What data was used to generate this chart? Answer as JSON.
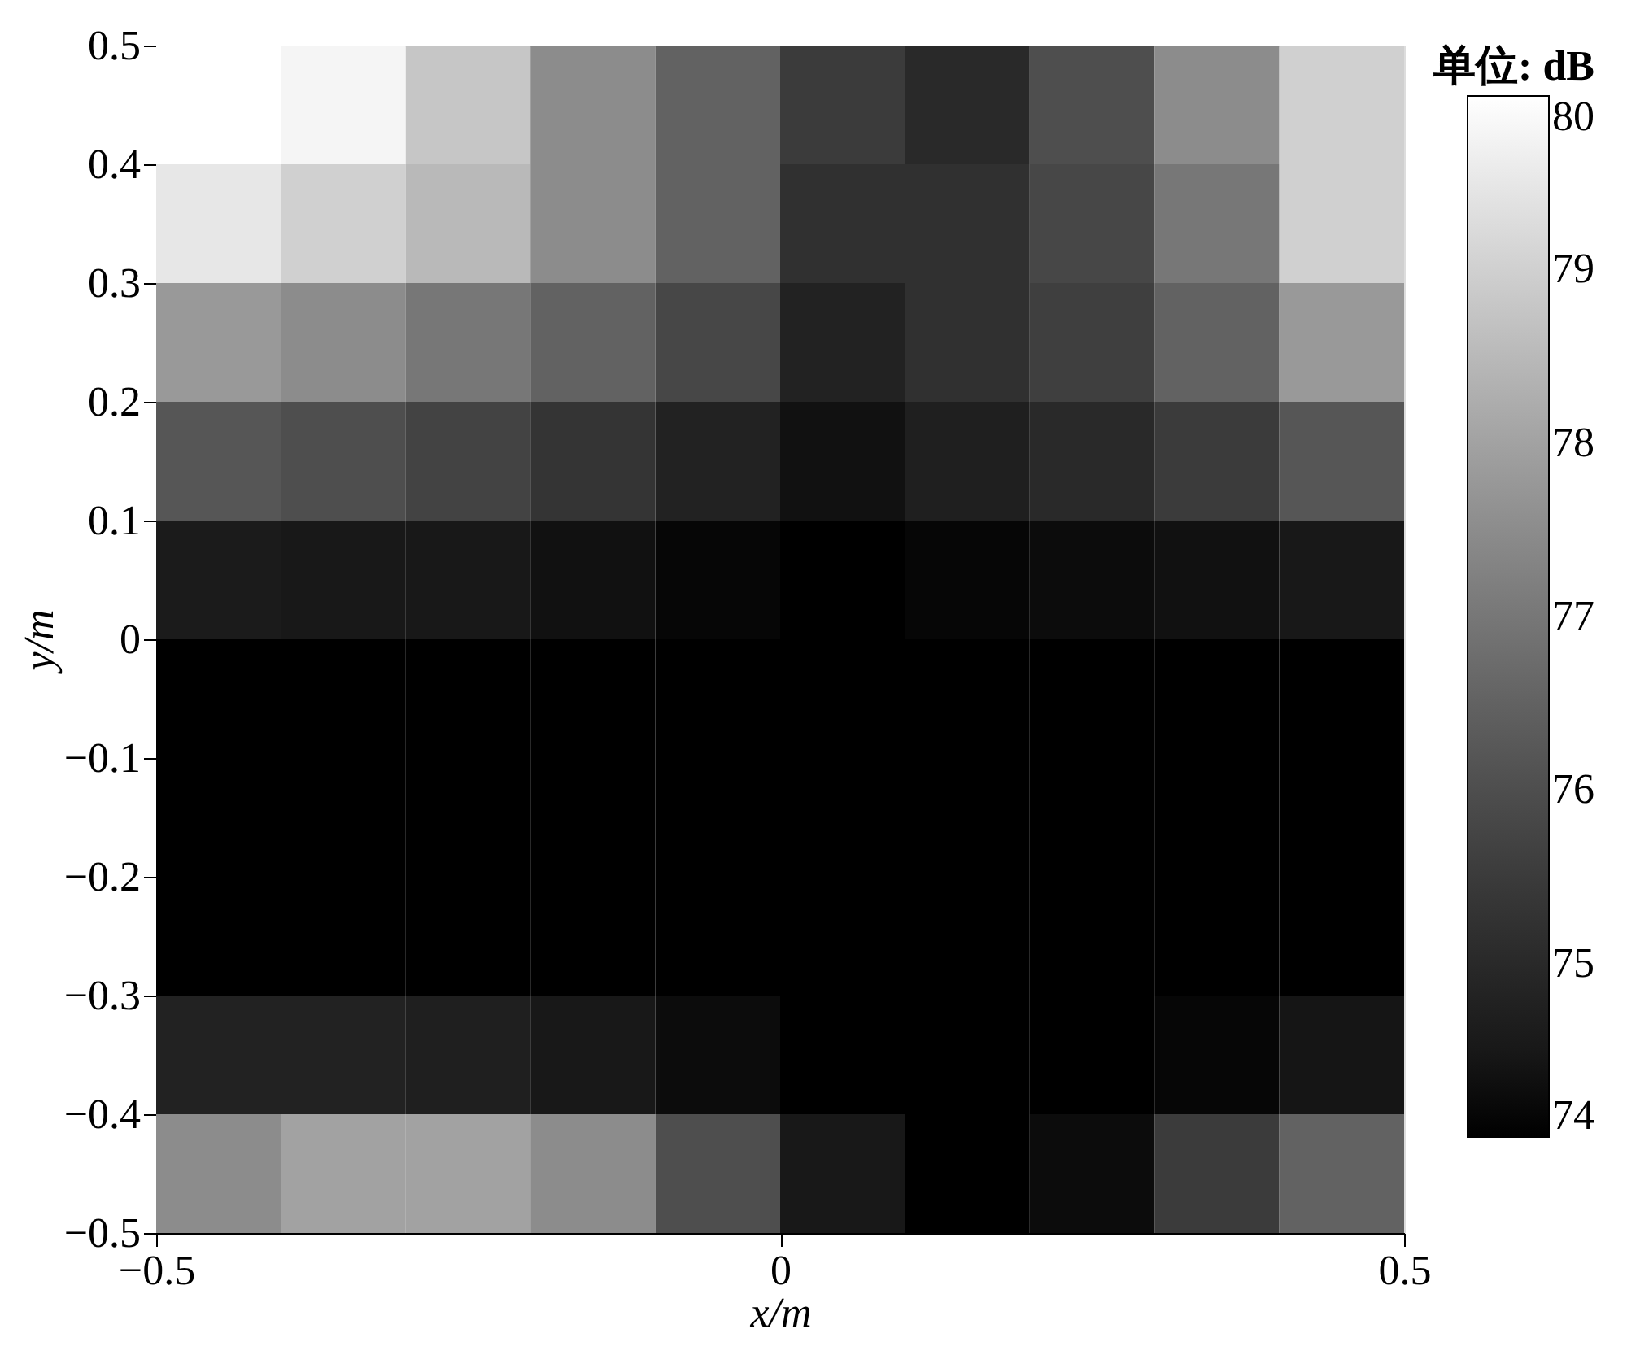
{
  "chart_data": {
    "type": "heatmap",
    "xlabel": "x/m",
    "ylabel": "y/m",
    "clabel": "单位: dB",
    "x": [
      -0.45,
      -0.35,
      -0.25,
      -0.15,
      -0.05,
      0.05,
      0.15,
      0.25,
      0.35,
      0.45
    ],
    "y": [
      0.45,
      0.35,
      0.25,
      0.15,
      0.05,
      -0.05,
      -0.15,
      -0.25,
      -0.35,
      -0.45
    ],
    "cells": [
      [
        80,
        79.8,
        78.8,
        77.5,
        76.5,
        75.5,
        75,
        76,
        77.5,
        79
      ],
      [
        79.5,
        79,
        78.5,
        77.5,
        76.5,
        75.2,
        75.2,
        75.8,
        77,
        79
      ],
      [
        77.8,
        77.5,
        77,
        76.5,
        75.8,
        74.8,
        75.2,
        75.6,
        76.5,
        77.8
      ],
      [
        76.2,
        76,
        75.7,
        75.3,
        74.8,
        74.3,
        74.7,
        75,
        75.5,
        76.2
      ],
      [
        74.6,
        74.5,
        74.5,
        74.3,
        74.1,
        74,
        74.1,
        74.2,
        74.3,
        74.5
      ],
      [
        74,
        74,
        74,
        74,
        74,
        74,
        74,
        74,
        74,
        74
      ],
      [
        74,
        74,
        74,
        74,
        74,
        74,
        74,
        74,
        74,
        74
      ],
      [
        74,
        74,
        74,
        74,
        74,
        74,
        74,
        74,
        74,
        74
      ],
      [
        74.8,
        74.8,
        74.7,
        74.5,
        74.2,
        74,
        74,
        74,
        74.1,
        74.4
      ],
      [
        77.5,
        78,
        78,
        77.5,
        76,
        74.5,
        74,
        74.2,
        75.5,
        76.5
      ]
    ],
    "xlim": [
      -0.5,
      0.5
    ],
    "ylim": [
      -0.5,
      0.5
    ],
    "xticks": [
      -0.5,
      0,
      0.5
    ],
    "yticks": [
      -0.5,
      -0.4,
      -0.3,
      -0.2,
      -0.1,
      0,
      0.1,
      0.2,
      0.3,
      0.4,
      0.5
    ],
    "clim": [
      74,
      80
    ],
    "cticks": [
      74,
      75,
      76,
      77,
      78,
      79,
      80
    ],
    "grid": false
  }
}
